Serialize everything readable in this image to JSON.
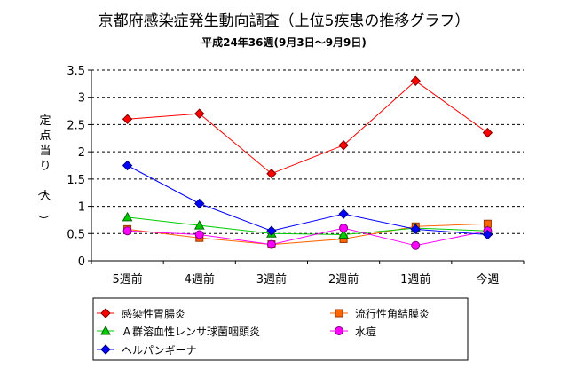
{
  "chart_data": {
    "type": "line",
    "title": "京都府感染症発生動向調査（上位5疾患の推移グラフ）",
    "subtitle": "平成24年36週(9月3日～9月9日)",
    "ylabel": "定点当り（人）",
    "xlabel": "",
    "categories": [
      "5週前",
      "4週前",
      "3週前",
      "2週前",
      "1週前",
      "今週"
    ],
    "ylim": [
      0,
      3.5
    ],
    "yticks": [
      "0",
      "0.5",
      "1",
      "1.5",
      "2",
      "2.5",
      "3",
      "3.5"
    ],
    "grid": "horizontal dashed",
    "legend_position": "bottom",
    "series": [
      {
        "name": "感染性胃腸炎",
        "color": "#ff0000",
        "marker": "diamond",
        "values": [
          2.6,
          2.7,
          1.6,
          2.12,
          3.3,
          2.35
        ]
      },
      {
        "name": "流行性角結膜炎",
        "color": "#ff6600",
        "marker": "square",
        "values": [
          0.58,
          0.42,
          0.3,
          0.4,
          0.63,
          0.68
        ]
      },
      {
        "name": "Ａ群溶血性レンサ球菌咽頭炎",
        "color": "#00cc00",
        "marker": "triangle",
        "values": [
          0.8,
          0.65,
          0.5,
          0.48,
          0.6,
          0.55
        ]
      },
      {
        "name": "水痘",
        "color": "#ff00ff",
        "marker": "circle",
        "values": [
          0.55,
          0.48,
          0.3,
          0.6,
          0.28,
          0.55
        ]
      },
      {
        "name": "ヘルパンギーナ",
        "color": "#0000ff",
        "marker": "diamond",
        "values": [
          1.75,
          1.05,
          0.55,
          0.86,
          0.58,
          0.48
        ]
      }
    ]
  }
}
